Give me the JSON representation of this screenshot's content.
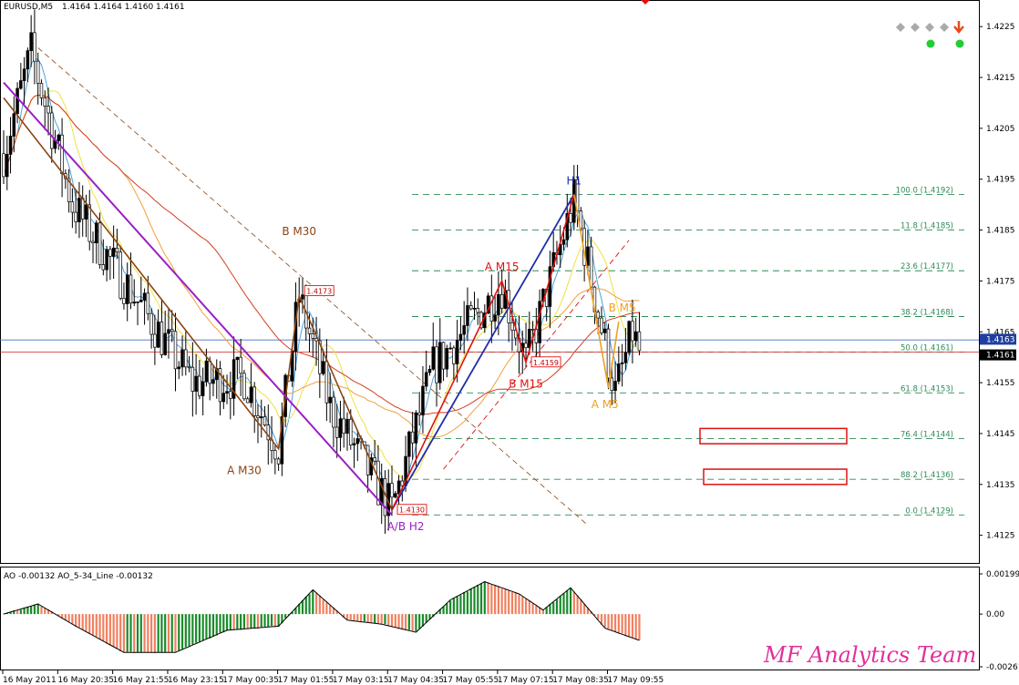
{
  "header": {
    "symbol": "EURUSD,M5",
    "ohlc": "1.4164 1.4164 1.4160 1.4161"
  },
  "ao_header": "AO -0.00132  AO_5-34_Line -0.00132",
  "brand": "MF Analytics Team",
  "colors": {
    "bull_candle": "#000000",
    "bear_candle": "#ffffff",
    "fib": "#2e8b57",
    "ao_up": "#1a8a2a",
    "ao_down": "#f08060",
    "h1_wave": "#1f2ea8",
    "m15_wave": "#e01010",
    "m30_wave": "#8b4513",
    "h2_wave": "#9a1fc4",
    "m5_wave": "#f0a020"
  },
  "chart_data": [
    {
      "type": "candlestick",
      "title": "",
      "symbol": "EURUSD,M5",
      "ylim": [
        1.4121,
        1.4227
      ],
      "y_ticks": [
        "1.4225",
        "1.4215",
        "1.4205",
        "1.4195",
        "1.4185",
        "1.4175",
        "1.4165",
        "1.4155",
        "1.4145",
        "1.4135",
        "1.4125"
      ],
      "x_ticks": [
        "16 May 2011",
        "16 May 20:35",
        "16 May 21:55",
        "16 May 23:15",
        "17 May 00:35",
        "17 May 01:55",
        "17 May 03:15",
        "17 May 04:35",
        "17 May 05:55",
        "17 May 07:15",
        "17 May 08:35",
        "17 May 09:55"
      ],
      "price_key_points": [
        {
          "t": 0,
          "p": 1.42
        },
        {
          "t": 8,
          "p": 1.422
        },
        {
          "t": 20,
          "p": 1.419
        },
        {
          "t": 40,
          "p": 1.417
        },
        {
          "t": 55,
          "p": 1.4155
        },
        {
          "t": 70,
          "p": 1.4156
        },
        {
          "t": 80,
          "p": 1.4142
        },
        {
          "t": 86,
          "p": 1.4172
        },
        {
          "t": 95,
          "p": 1.415
        },
        {
          "t": 113,
          "p": 1.413
        },
        {
          "t": 125,
          "p": 1.4158
        },
        {
          "t": 145,
          "p": 1.4174
        },
        {
          "t": 152,
          "p": 1.4159
        },
        {
          "t": 166,
          "p": 1.4191
        },
        {
          "t": 178,
          "p": 1.4153
        },
        {
          "t": 183,
          "p": 1.4165
        },
        {
          "t": 185,
          "p": 1.4161
        }
      ],
      "current_price_labels": [
        {
          "label": "1.4163",
          "price": 1.4163
        },
        {
          "label": "1.4161",
          "price": 1.4161
        }
      ],
      "fib_levels": [
        {
          "label": "100.0 (1.4192)",
          "price": 1.4192
        },
        {
          "label": "11.8 (1.4185)",
          "price": 1.4185
        },
        {
          "label": "23.6 (1.4177)",
          "price": 1.4177
        },
        {
          "label": "38.2 (1.4168)",
          "price": 1.4168
        },
        {
          "label": "50.0 (1.4161)",
          "price": 1.4161
        },
        {
          "label": "61.8 (1.4153)",
          "price": 1.4153
        },
        {
          "label": "76.4 (1.4144)",
          "price": 1.4144
        },
        {
          "label": "88.2 (1.4136)",
          "price": 1.4136
        },
        {
          "label": "0.0 (1.4129)",
          "price": 1.4129
        }
      ],
      "target_zones": [
        {
          "price_from": 1.4143,
          "price_to": 1.4146
        },
        {
          "price_from": 1.4135,
          "price_to": 1.4138
        }
      ],
      "wave_labels": [
        {
          "text": "H1",
          "t": 166,
          "p": 1.4194,
          "color": "#1f2ea8"
        },
        {
          "text": "A M15",
          "t": 145,
          "p": 1.4177,
          "color": "#e01010"
        },
        {
          "text": "B M15",
          "t": 152,
          "p": 1.4154,
          "color": "#e01010"
        },
        {
          "text": "B M30",
          "t": 86,
          "p": 1.4184,
          "color": "#8b4513"
        },
        {
          "text": "A M30",
          "t": 70,
          "p": 1.4137,
          "color": "#8b4513"
        },
        {
          "text": "A/B H2",
          "t": 117,
          "p": 1.4126,
          "color": "#9a1fc4"
        },
        {
          "text": "B M5",
          "t": 180,
          "p": 1.4169,
          "color": "#f0a020"
        },
        {
          "text": "A M5",
          "t": 175,
          "p": 1.415,
          "color": "#f0a020"
        }
      ],
      "price_tags": [
        {
          "text": "1.4173",
          "t": 86,
          "p": 1.4173
        },
        {
          "text": "1.4159",
          "t": 152,
          "p": 1.4159
        },
        {
          "text": "1.4130",
          "t": 113,
          "p": 1.413
        }
      ]
    },
    {
      "type": "bar",
      "title": "AO -0.00132  AO_5-34_Line -0.00132",
      "ylim": [
        -0.00261,
        0.00199
      ],
      "y_ticks": [
        "0.00199",
        "0.00",
        "-0.00261"
      ],
      "key_points": [
        {
          "t": 0,
          "v": 0.0
        },
        {
          "t": 10,
          "v": 0.0005
        },
        {
          "t": 20,
          "v": -0.0005
        },
        {
          "t": 35,
          "v": -0.0019
        },
        {
          "t": 50,
          "v": -0.0019
        },
        {
          "t": 65,
          "v": -0.0008
        },
        {
          "t": 80,
          "v": -0.0006
        },
        {
          "t": 90,
          "v": 0.0012
        },
        {
          "t": 100,
          "v": -0.0003
        },
        {
          "t": 110,
          "v": -0.0005
        },
        {
          "t": 120,
          "v": -0.0009
        },
        {
          "t": 130,
          "v": 0.0007
        },
        {
          "t": 140,
          "v": 0.0016
        },
        {
          "t": 150,
          "v": 0.001
        },
        {
          "t": 157,
          "v": 0.0002
        },
        {
          "t": 165,
          "v": 0.0013
        },
        {
          "t": 175,
          "v": -0.0007
        },
        {
          "t": 185,
          "v": -0.0013
        }
      ]
    }
  ]
}
